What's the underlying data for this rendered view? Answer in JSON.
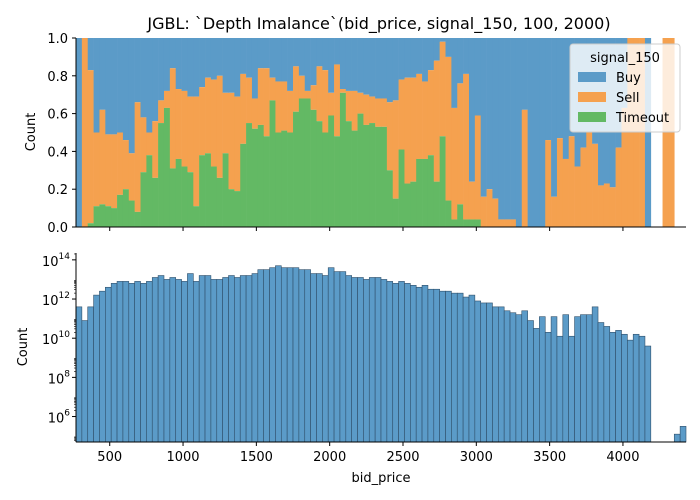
{
  "chart_data": [
    {
      "panel": "top",
      "type": "bar",
      "stacking": "fill",
      "title": "JGBL: `Depth Imalance`(bid_price, signal_150, 100, 2000)",
      "xlabel": "",
      "ylabel": "Count",
      "xlim": [
        270,
        4430
      ],
      "ylim": [
        0,
        1
      ],
      "xticks": [
        500,
        1000,
        1500,
        2000,
        2500,
        3000,
        3500,
        4000
      ],
      "yticks": [
        {
          "v": 0.0,
          "label": "0.0"
        },
        {
          "v": 0.2,
          "label": "0.2"
        },
        {
          "v": 0.4,
          "label": "0.4"
        },
        {
          "v": 0.6,
          "label": "0.6"
        },
        {
          "v": 0.8,
          "label": "0.8"
        },
        {
          "v": 1.0,
          "label": "1.0"
        }
      ],
      "bin_start": 270,
      "bin_width": 40,
      "legend": {
        "title": "signal_150",
        "location": "top-right",
        "entries": [
          {
            "name": "Buy",
            "color": "#5b9bc8"
          },
          {
            "name": "Sell",
            "color": "#f5a14f"
          },
          {
            "name": "Timeout",
            "color": "#63b964"
          }
        ]
      },
      "note": "per bin: timeout = Timeout share (bottom), sell_top = cumulative Timeout+Sell share; Buy fills the rest up to 1.0",
      "timeout": [
        0,
        0,
        0.02,
        0.11,
        0.12,
        0.11,
        0.1,
        0.17,
        0.2,
        0.14,
        0.08,
        0.29,
        0.38,
        0.26,
        0.55,
        0.63,
        0.31,
        0.36,
        0.32,
        0.29,
        0.11,
        0.38,
        0.39,
        0.32,
        0.26,
        0.39,
        0.2,
        0.19,
        0.44,
        0.55,
        0.52,
        0.54,
        0.48,
        0.67,
        0.5,
        0.51,
        0.5,
        0.61,
        0.68,
        0.68,
        0.62,
        0.56,
        0.5,
        0.59,
        0.48,
        0.71,
        0.56,
        0.51,
        0.6,
        0.54,
        0.55,
        0.53,
        0.53,
        0.3,
        0.15,
        0.41,
        0.23,
        0.24,
        0.36,
        0.36,
        0.38,
        0.24,
        0.48,
        0.14,
        0.04,
        0.12,
        0.04,
        0.04,
        0.04,
        0,
        0,
        0,
        0,
        0,
        0,
        0,
        0,
        0,
        0,
        0,
        0,
        0,
        0,
        0,
        0,
        0,
        0,
        0,
        0,
        0,
        0,
        0,
        0,
        0,
        0,
        0,
        0,
        0,
        0,
        0,
        0,
        0,
        0,
        0
      ],
      "sell_top": [
        0,
        1.0,
        0.83,
        0.5,
        0.62,
        0.49,
        0.49,
        0.5,
        0.46,
        0.39,
        0.66,
        0.58,
        0.5,
        0.56,
        0.67,
        0.72,
        0.84,
        0.73,
        0.72,
        0.69,
        0.69,
        0.74,
        0.79,
        0.78,
        0.8,
        0.71,
        0.71,
        0.69,
        0.81,
        0.79,
        0.68,
        0.84,
        0.84,
        0.79,
        0.77,
        0.77,
        0.72,
        0.85,
        0.8,
        0.72,
        0.75,
        0.85,
        0.83,
        0.71,
        0.86,
        0.73,
        0.72,
        0.72,
        0.71,
        0.7,
        0.69,
        0.68,
        0.68,
        0.66,
        0.67,
        0.78,
        0.79,
        0.79,
        0.81,
        0.77,
        0.83,
        0.88,
        0.98,
        0.9,
        0.63,
        0.76,
        0.81,
        0.24,
        0.59,
        0.16,
        0.2,
        0.15,
        0.04,
        0.04,
        0.04,
        0,
        0.62,
        0.0,
        0.0,
        0.0,
        0.46,
        0.16,
        0.47,
        0.36,
        0.48,
        0.32,
        0.42,
        0.5,
        0.44,
        0.22,
        0.23,
        0.21,
        0.42,
        0.63,
        1.0,
        1.0,
        1.0,
        0.0,
        0.0,
        0.0,
        1.0,
        1.0,
        0.0
      ],
      "buy_top": [
        1,
        1,
        1,
        1,
        1,
        1,
        1,
        1,
        1,
        1,
        1,
        1,
        1,
        1,
        1,
        1,
        1,
        1,
        1,
        1,
        1,
        1,
        1,
        1,
        1,
        1,
        1,
        1,
        1,
        1,
        1,
        1,
        1,
        1,
        1,
        1,
        1,
        1,
        1,
        1,
        1,
        1,
        1,
        1,
        1,
        1,
        1,
        1,
        1,
        1,
        1,
        1,
        1,
        1,
        1,
        1,
        1,
        1,
        1,
        1,
        1,
        1,
        1,
        1,
        1,
        1,
        1,
        1,
        1,
        1,
        1,
        1,
        1,
        1,
        1,
        1,
        1,
        1,
        1,
        1,
        1,
        1,
        1,
        1,
        1,
        1,
        1,
        1,
        1,
        1,
        1,
        1,
        1,
        1,
        1,
        1,
        1,
        1,
        0,
        0,
        1,
        1,
        0
      ]
    },
    {
      "panel": "bottom",
      "type": "bar",
      "scale": "log",
      "title": "",
      "xlabel": "bid_price",
      "ylabel": "Count",
      "xlim": [
        270,
        4430
      ],
      "ylog_range": [
        4.7,
        14.35
      ],
      "xticks": [
        500,
        1000,
        1500,
        2000,
        2500,
        3000,
        3500,
        4000
      ],
      "yticks": [
        {
          "exp": 6,
          "base": "10",
          "sup": "6"
        },
        {
          "exp": 8,
          "base": "10",
          "sup": "8"
        },
        {
          "exp": 10,
          "base": "10",
          "sup": "10"
        },
        {
          "exp": 12,
          "base": "10",
          "sup": "12"
        },
        {
          "exp": 14,
          "base": "10",
          "sup": "14"
        }
      ],
      "bin_start": 270,
      "bin_width": 40,
      "color": "#5b9bc8",
      "log10_counts": [
        11.6,
        10.9,
        11.6,
        12.2,
        12.4,
        12.6,
        12.8,
        12.9,
        12.9,
        12.8,
        12.9,
        12.8,
        12.9,
        13.1,
        13.2,
        13.0,
        13.1,
        13.0,
        12.9,
        13.3,
        12.9,
        13.2,
        13.2,
        13.0,
        13.0,
        13.1,
        13.2,
        13.1,
        13.2,
        13.2,
        13.3,
        13.5,
        13.5,
        13.6,
        13.7,
        13.6,
        13.6,
        13.6,
        13.5,
        13.5,
        13.3,
        13.3,
        13.2,
        13.6,
        13.4,
        13.4,
        13.2,
        13.1,
        13.1,
        13.0,
        13.1,
        13.1,
        13.0,
        12.9,
        12.8,
        12.9,
        12.8,
        12.7,
        12.6,
        12.7,
        12.5,
        12.5,
        12.4,
        12.4,
        12.3,
        12.3,
        12.1,
        12.2,
        11.9,
        11.8,
        11.8,
        11.6,
        11.6,
        11.4,
        11.3,
        11.2,
        11.4,
        10.9,
        10.5,
        11.1,
        10.3,
        11.1,
        10.1,
        11.2,
        10.1,
        11.1,
        11.2,
        11.2,
        11.6,
        10.8,
        10.6,
        10.3,
        10.4,
        10.2,
        9.9,
        10.2,
        10.1,
        9.6,
        0,
        0,
        0,
        0,
        5.1,
        5.5
      ]
    }
  ]
}
